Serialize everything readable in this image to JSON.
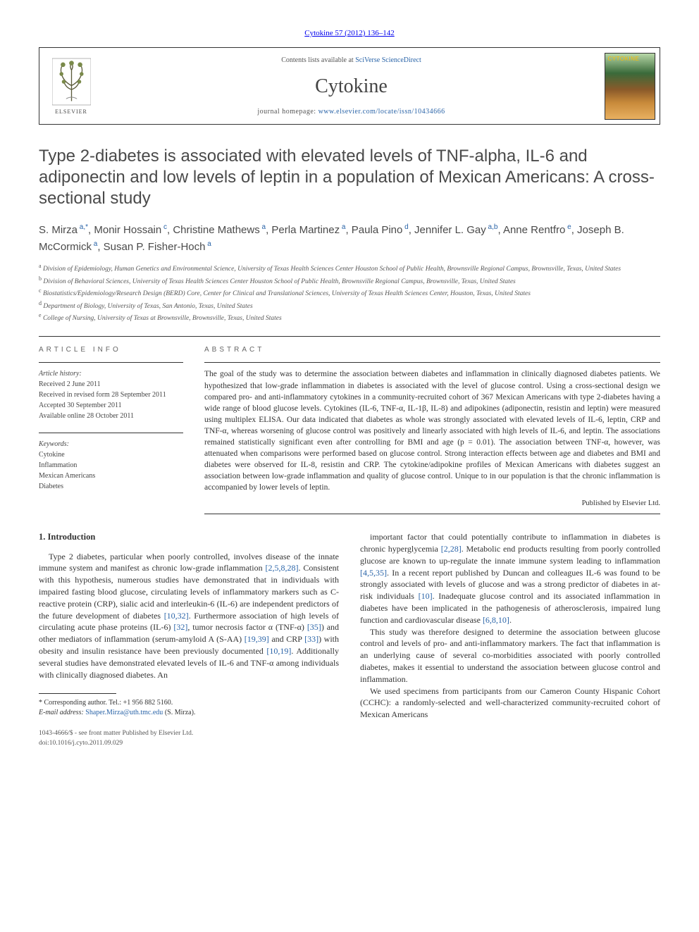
{
  "journal_ref": "Cytokine 57 (2012) 136–142",
  "header": {
    "contents_prefix": "Contents lists available at ",
    "contents_link": "SciVerse ScienceDirect",
    "journal_name": "Cytokine",
    "homepage_prefix": "journal homepage: ",
    "homepage_url": "www.elsevier.com/locate/issn/10434666",
    "elsevier_label": "ELSEVIER",
    "cover_label": "CYTOKINE"
  },
  "title": "Type 2-diabetes is associated with elevated levels of TNF-alpha, IL-6 and adiponectin and low levels of leptin in a population of Mexican Americans: A cross-sectional study",
  "authors_html": "S. Mirza<sup> a,*</sup>, Monir Hossain<sup> c</sup>, Christine Mathews<sup> a</sup>, Perla Martinez<sup> a</sup>, Paula Pino<sup> d</sup>, Jennifer L. Gay<sup> a,b</sup>, Anne Rentfro<sup> e</sup>, Joseph B. McCormick<sup> a</sup>, Susan P. Fisher-Hoch<sup> a</sup>",
  "affiliations": [
    {
      "key": "a",
      "text": "Division of Epidemiology, Human Genetics and Environmental Science, University of Texas Health Sciences Center Houston School of Public Health, Brownsville Regional Campus, Brownsville, Texas, United States"
    },
    {
      "key": "b",
      "text": "Division of Behavioral Sciences, University of Texas Health Sciences Center Houston School of Public Health, Brownsville Regional Campus, Brownsville, Texas, United States"
    },
    {
      "key": "c",
      "text": "Biostatistics/Epidemiology/Research Design (BERD) Core, Center for Clinical and Translational Sciences, University of Texas Health Sciences Center, Houston, Texas, United States"
    },
    {
      "key": "d",
      "text": "Department of Biology, University of Texas, San Antonio, Texas, United States"
    },
    {
      "key": "e",
      "text": "College of Nursing, University of Texas at Brownsville, Brownsville, Texas, United States"
    }
  ],
  "article_info": {
    "label": "ARTICLE INFO",
    "history_label": "Article history:",
    "history": [
      "Received 2 June 2011",
      "Received in revised form 28 September 2011",
      "Accepted 30 September 2011",
      "Available online 28 October 2011"
    ],
    "keywords_label": "Keywords:",
    "keywords": [
      "Cytokine",
      "Inflammation",
      "Mexican Americans",
      "Diabetes"
    ]
  },
  "abstract": {
    "label": "ABSTRACT",
    "text": "The goal of the study was to determine the association between diabetes and inflammation in clinically diagnosed diabetes patients. We hypothesized that low-grade inflammation in diabetes is associated with the level of glucose control. Using a cross-sectional design we compared pro- and anti-inflammatory cytokines in a community-recruited cohort of 367 Mexican Americans with type 2-diabetes having a wide range of blood glucose levels. Cytokines (IL-6, TNF-α, IL-1β, IL-8) and adipokines (adiponectin, resistin and leptin) were measured using multiplex ELISA. Our data indicated that diabetes as whole was strongly associated with elevated levels of IL-6, leptin, CRP and TNF-α, whereas worsening of glucose control was positively and linearly associated with high levels of IL-6, and leptin. The associations remained statistically significant even after controlling for BMI and age (p = 0.01). The association between TNF-α, however, was attenuated when comparisons were performed based on glucose control. Strong interaction effects between age and diabetes and BMI and diabetes were observed for IL-8, resistin and CRP. The cytokine/adipokine profiles of Mexican Americans with diabetes suggest an association between low-grade inflammation and quality of glucose control. Unique to in our population is that the chronic inflammation is accompanied by lower levels of leptin.",
    "publisher_line": "Published by Elsevier Ltd."
  },
  "body": {
    "heading": "1. Introduction",
    "col1": [
      "Type 2 diabetes, particular when poorly controlled, involves disease of the innate immune system and manifest as chronic low-grade inflammation <a href='#'>[2,5,8,28]</a>. Consistent with this hypothesis, numerous studies have demonstrated that in individuals with impaired fasting blood glucose, circulating levels of inflammatory markers such as C-reactive protein (CRP), sialic acid and interleukin-6 (IL-6) are independent predictors of the future development of diabetes <a href='#'>[10,32]</a>. Furthermore association of high levels of circulating acute phase proteins (IL-6) <a href='#'>[32]</a>, tumor necrosis factor α (TNF-α) <a href='#'>[35]</a>) and other mediators of inflammation (serum-amyloid A (S-AA) <a href='#'>[19,39]</a> and CRP <a href='#'>[33]</a>) with obesity and insulin resistance have been previously documented <a href='#'>[10,19]</a>. Additionally several studies have demonstrated elevated levels of IL-6 and TNF-α among individuals with clinically diagnosed diabetes. An"
    ],
    "col2": [
      "important factor that could potentially contribute to inflammation in diabetes is chronic hyperglycemia <a href='#'>[2,28]</a>. Metabolic end products resulting from poorly controlled glucose are known to up-regulate the innate immune system leading to inflammation <a href='#'>[4,5,35]</a>. In a recent report published by Duncan and colleagues IL-6 was found to be strongly associated with levels of glucose and was a strong predictor of diabetes in at-risk individuals <a href='#'>[10]</a>. Inadequate glucose control and its associated inflammation in diabetes have been implicated in the pathogenesis of atherosclerosis, impaired lung function and cardiovascular disease <a href='#'>[6,8,10]</a>.",
      "This study was therefore designed to determine the association between glucose control and levels of pro- and anti-inflammatory markers. The fact that inflammation is an underlying cause of several co-morbidities associated with poorly controlled diabetes, makes it essential to understand the association between glucose control and inflammation.",
      "We used specimens from participants from our Cameron County Hispanic Cohort (CCHC): a randomly-selected and well-characterized community-recruited cohort of Mexican Americans"
    ]
  },
  "footnote": {
    "corr": "* Corresponding author. Tel.: +1 956 882 5160.",
    "email_label": "E-mail address: ",
    "email": "Shaper.Mirza@uth.tmc.edu",
    "email_suffix": " (S. Mirza)."
  },
  "footer": {
    "issn_line": "1043-4666/$ - see front matter Published by Elsevier Ltd.",
    "doi_line": "doi:10.1016/j.cyto.2011.09.029"
  },
  "colors": {
    "link": "#2a64a8",
    "text": "#333333",
    "label": "#666666"
  }
}
